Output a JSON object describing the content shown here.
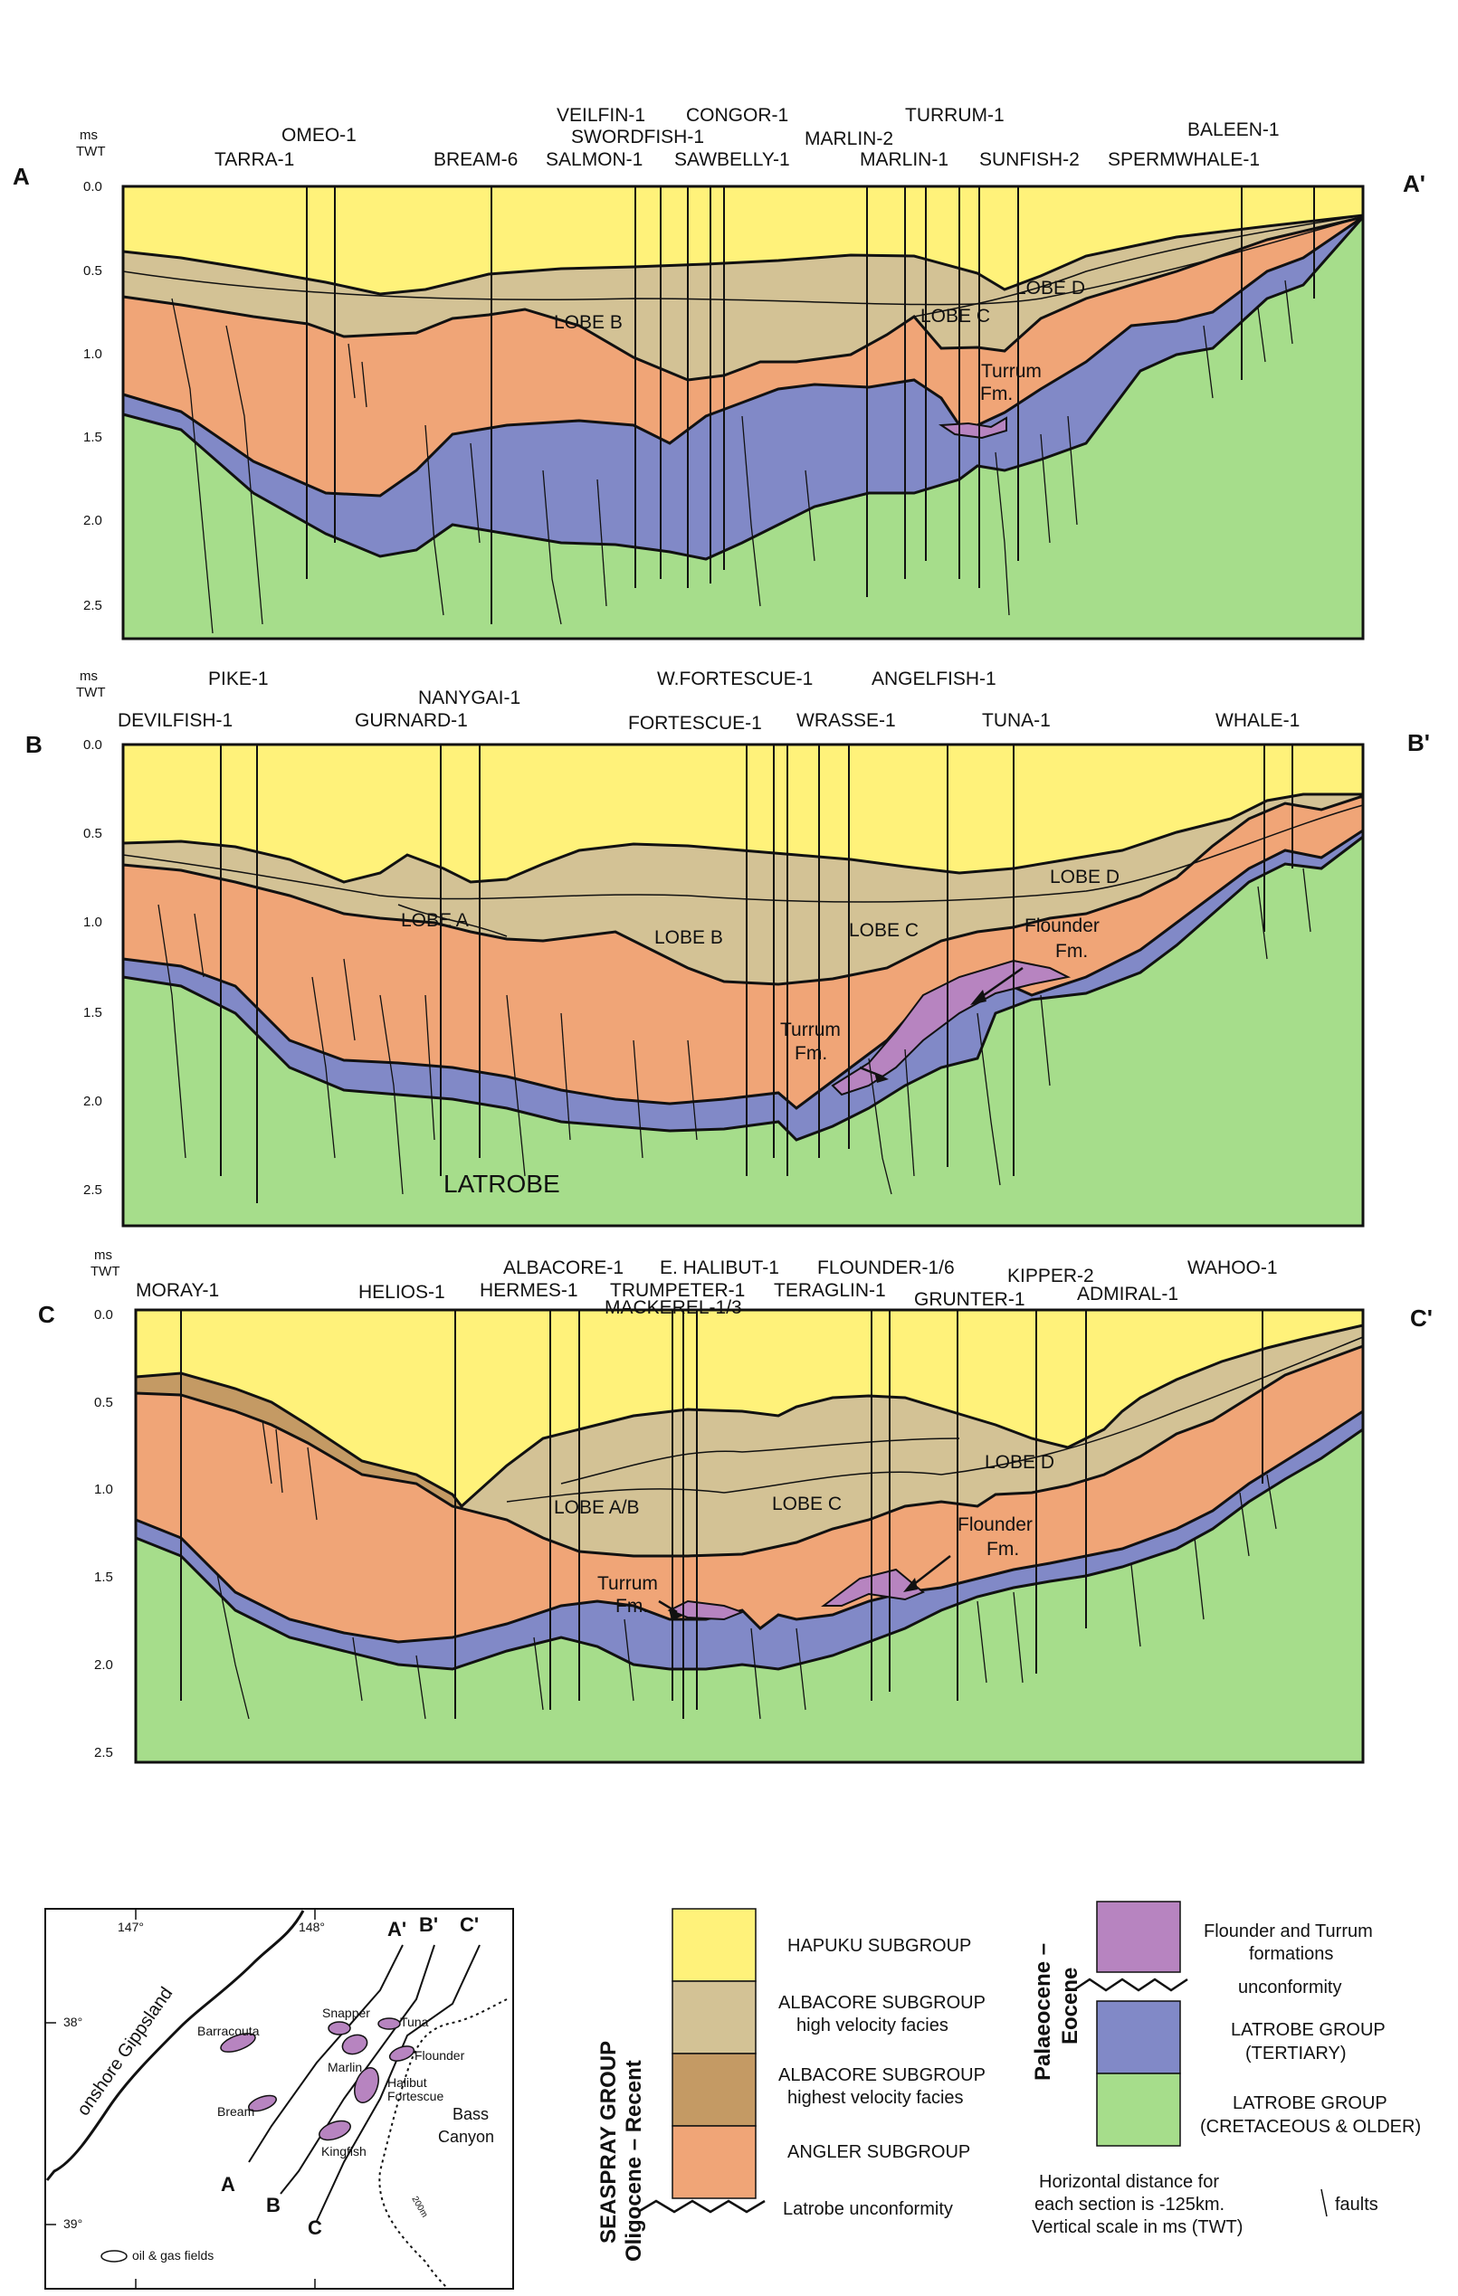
{
  "colors": {
    "hapuku": "#fff27a",
    "albacore_high": "#d3c295",
    "albacore_highest": "#c49a64",
    "angler": "#f0a577",
    "flounder_turrum": "#b784c0",
    "latrobe_tertiary": "#8189c7",
    "latrobe_cretaceous": "#a6dd8b",
    "outline": "#111111"
  },
  "axis": {
    "units_line1": "ms",
    "units_line2": "TWT",
    "ticks": [
      "0.0",
      "0.5",
      "1.0",
      "1.5",
      "2.0",
      "2.5"
    ]
  },
  "sections": [
    {
      "left_label": "A",
      "right_label": "A'",
      "wells": [
        "TARRA-1",
        "OMEO-1",
        "BREAM-6",
        "VEILFIN-1",
        "SWORDFISH-1",
        "SALMON-1",
        "CONGOR-1",
        "SAWBELLY-1",
        "MARLIN-2",
        "MARLIN-1",
        "TURRUM-1",
        "SUNFISH-2",
        "BALEEN-1",
        "SPERMWHALE-1"
      ],
      "labels": [
        "LOBE B",
        "LOBE C",
        "LOBE D",
        "Turrum",
        "Fm."
      ]
    },
    {
      "left_label": "B",
      "right_label": "B'",
      "wells": [
        "PIKE-1",
        "DEVILFISH-1",
        "NANYGAI-1",
        "GURNARD-1",
        "W.FORTESCUE-1",
        "FORTESCUE-1",
        "WRASSE-1",
        "ANGELFISH-1",
        "TUNA-1",
        "WHALE-1"
      ],
      "labels": [
        "LOBE A",
        "LOBE B",
        "LOBE C",
        "LOBE D",
        "Flounder",
        "Fm.",
        "Turrum",
        "Fm.",
        "LATROBE"
      ]
    },
    {
      "left_label": "C",
      "right_label": "C'",
      "wells": [
        "MORAY-1",
        "HELIOS-1",
        "ALBACORE-1",
        "HERMES-1",
        "E. HALIBUT-1",
        "TRUMPETER-1",
        "MACKEREL-1/3",
        "FLOUNDER-1/6",
        "TERAGLIN-1",
        "GRUNTER-1",
        "KIPPER-2",
        "ADMIRAL-1",
        "WAHOO-1"
      ],
      "labels": [
        "LOBE A/B",
        "LOBE C",
        "LOBE D",
        "Flounder",
        "Fm.",
        "Turrum",
        "Fm."
      ]
    }
  ],
  "map": {
    "lon_labels": [
      "147°",
      "148°"
    ],
    "lat_labels": [
      "38°",
      "39°"
    ],
    "region": "onshore Gippsland",
    "fields": [
      "Barracouta",
      "Snapper",
      "Marlin",
      "Tuna",
      "Flounder",
      "Halibut",
      "Fortescue",
      "Bream",
      "Kingfish"
    ],
    "lines_top": [
      "A'",
      "B'",
      "C'"
    ],
    "lines_bottom": [
      "A",
      "B",
      "C"
    ],
    "canyon": [
      "Bass",
      "Canyon"
    ],
    "isobath": "200m",
    "legend": "oil & gas fields"
  },
  "legend": {
    "seaspray_line1": "SEASPRAY GROUP",
    "seaspray_line2": "Oligocene – Recent",
    "palaeo_line1": "Palaeocene –",
    "palaeo_line2": "Eocene",
    "hapuku": "HAPUKU SUBGROUP",
    "albacore_high_1": "ALBACORE SUBGROUP",
    "albacore_high_2": "high velocity facies",
    "albacore_highest_1": "ALBACORE SUBGROUP",
    "albacore_highest_2": "highest velocity facies",
    "angler": "ANGLER SUBGROUP",
    "latrobe_unc": "Latrobe unconformity",
    "flounder_1": "Flounder and Turrum",
    "flounder_2": "formations",
    "unconformity": "unconformity",
    "lt_1": "LATROBE GROUP",
    "lt_2": "(TERTIARY)",
    "lc_1": "LATROBE GROUP",
    "lc_2": "(CRETACEOUS & OLDER)",
    "note_1": "Horizontal distance for",
    "note_2": "each section is -125km.",
    "note_3": "Vertical scale in ms (TWT)",
    "faults": "faults"
  }
}
